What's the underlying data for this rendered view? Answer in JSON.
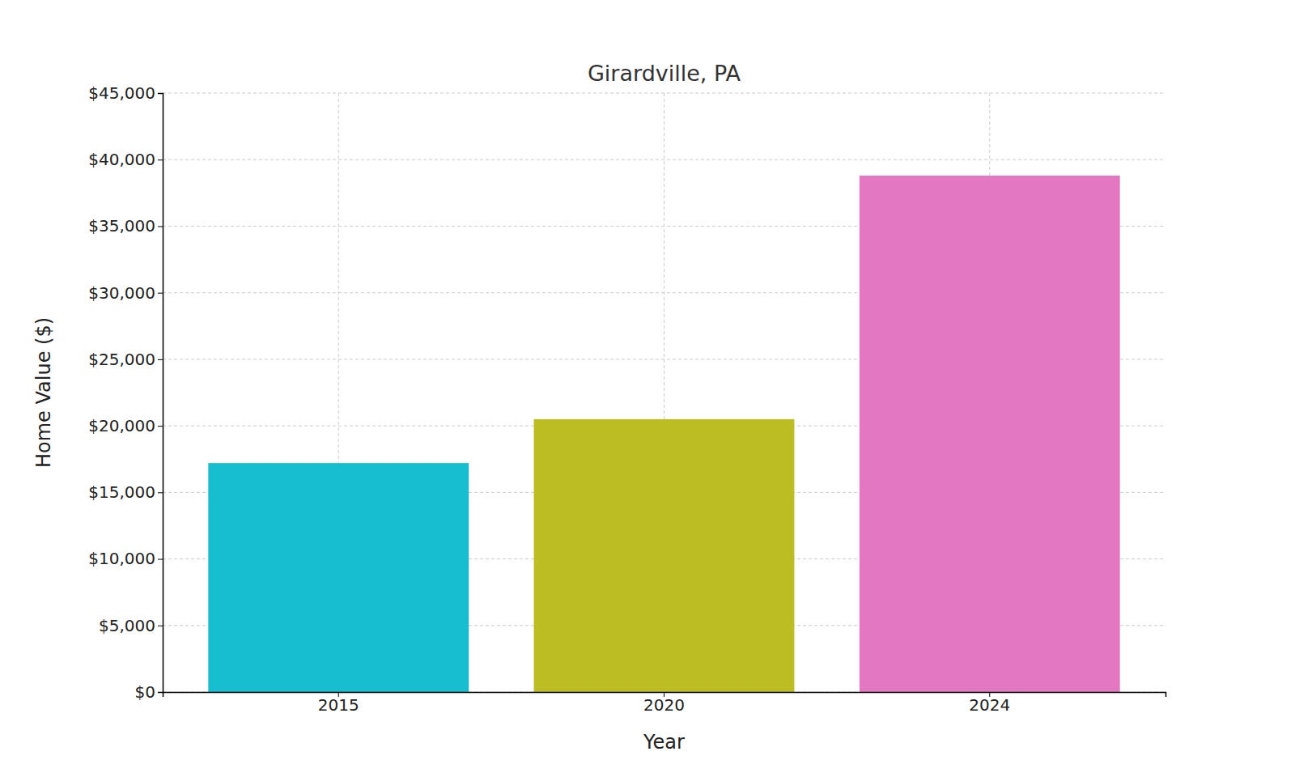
{
  "chart_data": {
    "type": "bar",
    "title": "Girardville, PA",
    "x_label": "Year",
    "y_label": "Home Value ($)",
    "categories": [
      "2015",
      "2020",
      "2024"
    ],
    "values": [
      17200,
      20500,
      38800
    ],
    "colors": [
      "#17becf",
      "#bcbd22",
      "#e377c2"
    ],
    "ylim": [
      0,
      45000
    ],
    "yticks": [
      {
        "value": 0,
        "label": "$0"
      },
      {
        "value": 5000,
        "label": "$5,000"
      },
      {
        "value": 10000,
        "label": "$10,000"
      },
      {
        "value": 15000,
        "label": "$15,000"
      },
      {
        "value": 20000,
        "label": "$20,000"
      },
      {
        "value": 25000,
        "label": "$25,000"
      },
      {
        "value": 30000,
        "label": "$30,000"
      },
      {
        "value": 35000,
        "label": "$35,000"
      },
      {
        "value": 40000,
        "label": "$40,000"
      },
      {
        "value": 45000,
        "label": "$45,000"
      }
    ],
    "grid": true
  }
}
